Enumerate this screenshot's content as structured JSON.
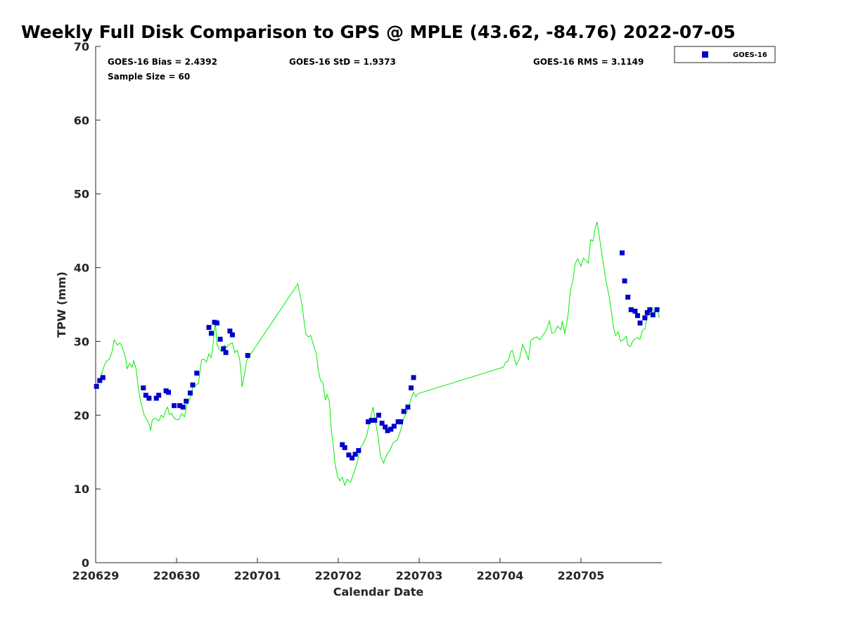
{
  "chart_data": {
    "type": "scatter",
    "title": "Weekly Full Disk Comparison to GPS @ MPLE (43.62, -84.76) 2022-07-05",
    "xlabel": "Calendar Date",
    "ylabel": "TPW (mm)",
    "xlim": [
      0,
      7
    ],
    "ylim": [
      0,
      70
    ],
    "x_ticks": [
      {
        "value": 0,
        "label": "220629"
      },
      {
        "value": 1,
        "label": "220630"
      },
      {
        "value": 2,
        "label": "220701"
      },
      {
        "value": 3,
        "label": "220702"
      },
      {
        "value": 4,
        "label": "220703"
      },
      {
        "value": 5,
        "label": "220704"
      },
      {
        "value": 6,
        "label": "220705"
      }
    ],
    "y_ticks": [
      0,
      10,
      20,
      30,
      40,
      50,
      60,
      70
    ],
    "stats": {
      "bias": "GOES-16 Bias = 2.4392",
      "std": "GOES-16 StD = 1.9373",
      "rms": "GOES-16 RMS = 3.1149",
      "sample": "Sample Size = 60"
    },
    "legend": {
      "label": "GOES-16",
      "position": "top-right, outside plot"
    },
    "series": [
      {
        "name": "GOES-16",
        "kind": "scatter",
        "color": "#0000cc",
        "points": [
          [
            0.01,
            23.9
          ],
          [
            0.05,
            24.7
          ],
          [
            0.09,
            25.1
          ],
          [
            0.59,
            23.7
          ],
          [
            0.62,
            22.7
          ],
          [
            0.66,
            22.3
          ],
          [
            0.75,
            22.3
          ],
          [
            0.78,
            22.7
          ],
          [
            0.87,
            23.3
          ],
          [
            0.9,
            23.1
          ],
          [
            0.97,
            21.3
          ],
          [
            1.04,
            21.3
          ],
          [
            1.08,
            21.1
          ],
          [
            1.12,
            21.9
          ],
          [
            1.17,
            23.0
          ],
          [
            1.2,
            24.1
          ],
          [
            1.25,
            25.7
          ],
          [
            1.4,
            31.9
          ],
          [
            1.43,
            31.1
          ],
          [
            1.47,
            32.6
          ],
          [
            1.5,
            32.5
          ],
          [
            1.54,
            30.3
          ],
          [
            1.58,
            29.0
          ],
          [
            1.61,
            28.5
          ],
          [
            1.66,
            31.4
          ],
          [
            1.69,
            30.9
          ],
          [
            1.88,
            28.1
          ],
          [
            3.05,
            16.0
          ],
          [
            3.08,
            15.6
          ],
          [
            3.13,
            14.6
          ],
          [
            3.17,
            14.2
          ],
          [
            3.21,
            14.7
          ],
          [
            3.25,
            15.2
          ],
          [
            3.37,
            19.1
          ],
          [
            3.41,
            19.3
          ],
          [
            3.45,
            19.3
          ],
          [
            3.5,
            20.0
          ],
          [
            3.54,
            18.9
          ],
          [
            3.58,
            18.4
          ],
          [
            3.61,
            17.9
          ],
          [
            3.65,
            18.1
          ],
          [
            3.69,
            18.5
          ],
          [
            3.74,
            19.1
          ],
          [
            3.77,
            19.1
          ],
          [
            3.81,
            20.5
          ],
          [
            3.86,
            21.1
          ],
          [
            3.9,
            23.7
          ],
          [
            3.93,
            25.1
          ],
          [
            6.51,
            42.0
          ],
          [
            6.54,
            38.2
          ],
          [
            6.58,
            36.0
          ],
          [
            6.62,
            34.3
          ],
          [
            6.67,
            34.1
          ],
          [
            6.7,
            33.5
          ],
          [
            6.73,
            32.5
          ],
          [
            6.79,
            33.2
          ],
          [
            6.82,
            33.9
          ],
          [
            6.85,
            34.3
          ],
          [
            6.89,
            33.6
          ],
          [
            6.94,
            34.3
          ]
        ]
      },
      {
        "name": "GPS",
        "kind": "line",
        "color": "#00ee00",
        "points": [
          [
            0.0,
            24.0
          ],
          [
            0.05,
            24.8
          ],
          [
            0.1,
            26.5
          ],
          [
            0.13,
            27.3
          ],
          [
            0.17,
            27.6
          ],
          [
            0.2,
            28.5
          ],
          [
            0.23,
            30.2
          ],
          [
            0.27,
            29.5
          ],
          [
            0.3,
            29.8
          ],
          [
            0.33,
            29.2
          ],
          [
            0.37,
            27.8
          ],
          [
            0.39,
            26.3
          ],
          [
            0.42,
            27.0
          ],
          [
            0.45,
            26.5
          ],
          [
            0.47,
            27.4
          ],
          [
            0.5,
            26.3
          ],
          [
            0.53,
            23.5
          ],
          [
            0.56,
            21.7
          ],
          [
            0.6,
            20.0
          ],
          [
            0.63,
            19.5
          ],
          [
            0.66,
            18.8
          ],
          [
            0.68,
            17.9
          ],
          [
            0.7,
            19.4
          ],
          [
            0.74,
            19.6
          ],
          [
            0.78,
            19.2
          ],
          [
            0.81,
            20.0
          ],
          [
            0.84,
            19.7
          ],
          [
            0.87,
            20.8
          ],
          [
            0.89,
            21.1
          ],
          [
            0.91,
            20.1
          ],
          [
            0.94,
            20.2
          ],
          [
            0.97,
            19.6
          ],
          [
            1.0,
            19.4
          ],
          [
            1.03,
            19.4
          ],
          [
            1.06,
            20.2
          ],
          [
            1.1,
            19.8
          ],
          [
            1.13,
            21.5
          ],
          [
            1.17,
            22.3
          ],
          [
            1.2,
            23.8
          ],
          [
            1.24,
            24.1
          ],
          [
            1.27,
            24.3
          ],
          [
            1.31,
            27.5
          ],
          [
            1.34,
            27.6
          ],
          [
            1.37,
            27.2
          ],
          [
            1.4,
            28.3
          ],
          [
            1.43,
            27.8
          ],
          [
            1.45,
            29.5
          ],
          [
            1.48,
            32.7
          ],
          [
            1.5,
            29.6
          ],
          [
            1.53,
            28.9
          ],
          [
            1.56,
            28.6
          ],
          [
            1.59,
            29.5
          ],
          [
            1.62,
            29.2
          ],
          [
            1.65,
            29.6
          ],
          [
            1.69,
            29.8
          ],
          [
            1.72,
            28.5
          ],
          [
            1.75,
            28.8
          ],
          [
            1.78,
            27.6
          ],
          [
            1.8,
            25.5
          ],
          [
            1.81,
            23.8
          ],
          [
            1.84,
            25.6
          ],
          [
            1.87,
            27.5
          ],
          [
            1.9,
            28.0
          ],
          [
            2.5,
            37.8
          ],
          [
            2.55,
            35.0
          ],
          [
            2.58,
            32.5
          ],
          [
            2.6,
            31.0
          ],
          [
            2.63,
            30.6
          ],
          [
            2.66,
            30.8
          ],
          [
            2.7,
            29.2
          ],
          [
            2.73,
            28.3
          ],
          [
            2.75,
            26.2
          ],
          [
            2.78,
            24.7
          ],
          [
            2.81,
            24.4
          ],
          [
            2.84,
            22.0
          ],
          [
            2.86,
            22.8
          ],
          [
            2.89,
            21.8
          ],
          [
            2.91,
            18.4
          ],
          [
            2.94,
            15.6
          ],
          [
            2.96,
            13.4
          ],
          [
            2.99,
            11.7
          ],
          [
            3.02,
            11.1
          ],
          [
            3.05,
            11.6
          ],
          [
            3.08,
            10.5
          ],
          [
            3.11,
            11.3
          ],
          [
            3.15,
            10.9
          ],
          [
            3.19,
            12.1
          ],
          [
            3.23,
            13.4
          ],
          [
            3.27,
            15.5
          ],
          [
            3.31,
            16.2
          ],
          [
            3.35,
            17.2
          ],
          [
            3.39,
            19.3
          ],
          [
            3.43,
            21.1
          ],
          [
            3.46,
            19.1
          ],
          [
            3.49,
            17.2
          ],
          [
            3.52,
            14.5
          ],
          [
            3.56,
            13.5
          ],
          [
            3.6,
            14.7
          ],
          [
            3.64,
            15.3
          ],
          [
            3.68,
            16.3
          ],
          [
            3.73,
            16.6
          ],
          [
            3.77,
            17.9
          ],
          [
            3.81,
            19.6
          ],
          [
            3.85,
            20.5
          ],
          [
            3.9,
            22.2
          ],
          [
            3.93,
            23.1
          ],
          [
            3.96,
            22.5
          ],
          [
            3.98,
            22.9
          ],
          [
            5.04,
            26.5
          ],
          [
            5.07,
            27.2
          ],
          [
            5.1,
            27.3
          ],
          [
            5.13,
            28.6
          ],
          [
            5.15,
            28.8
          ],
          [
            5.17,
            28.1
          ],
          [
            5.2,
            26.8
          ],
          [
            5.24,
            27.6
          ],
          [
            5.28,
            29.6
          ],
          [
            5.32,
            28.5
          ],
          [
            5.35,
            27.5
          ],
          [
            5.38,
            30.1
          ],
          [
            5.42,
            30.5
          ],
          [
            5.46,
            30.6
          ],
          [
            5.49,
            30.2
          ],
          [
            5.53,
            30.8
          ],
          [
            5.57,
            31.5
          ],
          [
            5.61,
            32.8
          ],
          [
            5.64,
            31.1
          ],
          [
            5.68,
            31.3
          ],
          [
            5.71,
            32.1
          ],
          [
            5.75,
            31.6
          ],
          [
            5.77,
            32.8
          ],
          [
            5.8,
            31.0
          ],
          [
            5.84,
            33.5
          ],
          [
            5.87,
            37.0
          ],
          [
            5.9,
            38.2
          ],
          [
            5.93,
            40.6
          ],
          [
            5.96,
            41.2
          ],
          [
            6.0,
            40.2
          ],
          [
            6.03,
            41.3
          ],
          [
            6.06,
            41.0
          ],
          [
            6.09,
            40.6
          ],
          [
            6.12,
            43.8
          ],
          [
            6.15,
            43.6
          ],
          [
            6.18,
            45.6
          ],
          [
            6.2,
            46.2
          ],
          [
            6.23,
            44.0
          ],
          [
            6.27,
            41.0
          ],
          [
            6.31,
            38.2
          ],
          [
            6.35,
            36.0
          ],
          [
            6.38,
            33.8
          ],
          [
            6.4,
            32.0
          ],
          [
            6.43,
            30.8
          ],
          [
            6.46,
            31.3
          ],
          [
            6.49,
            30.0
          ],
          [
            6.53,
            30.3
          ],
          [
            6.56,
            30.7
          ],
          [
            6.58,
            29.5
          ],
          [
            6.61,
            29.3
          ],
          [
            6.64,
            30.0
          ],
          [
            6.67,
            30.4
          ],
          [
            6.7,
            30.5
          ],
          [
            6.73,
            30.3
          ],
          [
            6.76,
            31.5
          ],
          [
            6.79,
            31.7
          ],
          [
            6.82,
            33.5
          ],
          [
            6.85,
            33.6
          ],
          [
            6.88,
            34.6
          ],
          [
            6.91,
            33.8
          ],
          [
            6.94,
            34.6
          ],
          [
            6.97,
            33.2
          ]
        ]
      }
    ]
  }
}
